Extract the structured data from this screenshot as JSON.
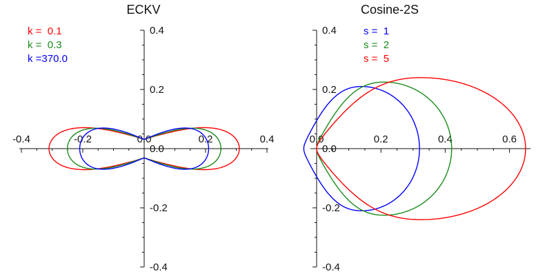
{
  "chart_data": [
    {
      "type": "line",
      "title": "ECKV",
      "xlabel": "",
      "ylabel": "",
      "xlim": [
        -0.4,
        0.4
      ],
      "ylim": [
        -0.4,
        0.4
      ],
      "x_ticks": [
        -0.4,
        -0.2,
        0.0,
        0.2,
        0.4
      ],
      "x_tick_labels": [
        "-0.4",
        "-0.2",
        "0.0",
        "0.2",
        "0.4"
      ],
      "y_ticks": [
        -0.4,
        -0.2,
        0.0,
        0.2,
        0.4
      ],
      "y_tick_labels": [
        "-0.4",
        "-0.2",
        "0.0",
        "0.2",
        "0.4"
      ],
      "legend_position": "top-left",
      "grid": false,
      "series": [
        {
          "name": "k =  0.1",
          "color": "#ff0000",
          "x_extent": [
            -0.31,
            0.31
          ],
          "y_extent": [
            -0.11,
            0.11
          ]
        },
        {
          "name": "k =  0.3",
          "color": "#1a8a1a",
          "x_extent": [
            -0.25,
            0.25
          ],
          "y_extent": [
            -0.107,
            0.107
          ]
        },
        {
          "name": "k =370.0",
          "color": "#0000ff",
          "x_extent": [
            -0.21,
            0.21
          ],
          "y_extent": [
            -0.108,
            0.108
          ]
        }
      ]
    },
    {
      "type": "line",
      "title": "Cosine-2S",
      "xlabel": "",
      "ylabel": "",
      "xlim": [
        -0.05,
        0.65
      ],
      "ylim": [
        -0.4,
        0.4
      ],
      "x_ticks": [
        0.0,
        0.2,
        0.4,
        0.6
      ],
      "x_tick_labels": [
        "0.0",
        "0.2",
        "0.4",
        "0.6"
      ],
      "y_ticks": [
        -0.4,
        -0.2,
        0.0,
        0.2,
        0.4
      ],
      "y_tick_labels": [
        "-0.4",
        "-0.2",
        "0.0",
        "0.2",
        "0.4"
      ],
      "legend_position": "top-left",
      "grid": false,
      "series": [
        {
          "name": "s =  1",
          "color": "#0000ff",
          "x_extent": [
            -0.04,
            0.32
          ],
          "y_extent": [
            -0.21,
            0.21
          ]
        },
        {
          "name": "s =  2",
          "color": "#1a8a1a",
          "x_extent": [
            0.0,
            0.42
          ],
          "y_extent": [
            -0.225,
            0.225
          ]
        },
        {
          "name": "s =  5",
          "color": "#ff0000",
          "x_extent": [
            0.0,
            0.65
          ],
          "y_extent": [
            -0.24,
            0.24
          ]
        }
      ]
    }
  ]
}
